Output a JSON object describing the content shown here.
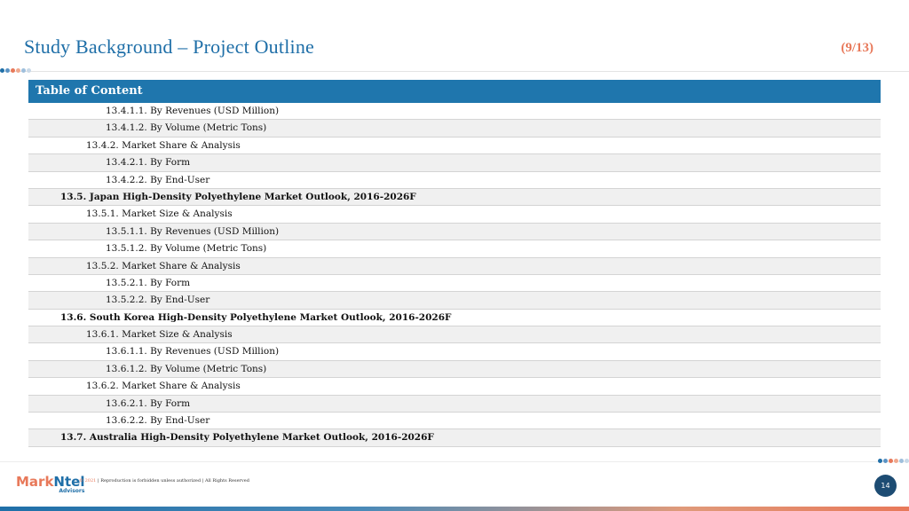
{
  "header": {
    "title": "Study Background – Project Outline",
    "page_counter": "(9/13)"
  },
  "toc": {
    "heading": "Table of Content",
    "rows": [
      {
        "text": "13.4.1.1. By Revenues (USD Million)",
        "level": 3
      },
      {
        "text": "13.4.1.2. By Volume (Metric Tons)",
        "level": 3
      },
      {
        "text": "13.4.2.   Market Share & Analysis",
        "level": 2
      },
      {
        "text": "13.4.2.1. By Form",
        "level": 3
      },
      {
        "text": "13.4.2.2. By End-User",
        "level": 3
      },
      {
        "text": "13.5.  Japan  High-Density Polyethylene Market Outlook, 2016-2026F",
        "level": 1
      },
      {
        "text": "13.5.1.   Market Size & Analysis",
        "level": 2
      },
      {
        "text": "13.5.1.1. By Revenues (USD Million)",
        "level": 3
      },
      {
        "text": "13.5.1.2. By Volume (Metric Tons)",
        "level": 3
      },
      {
        "text": "13.5.2.   Market Share & Analysis",
        "level": 2
      },
      {
        "text": "13.5.2.1. By Form",
        "level": 3
      },
      {
        "text": "13.5.2.2. By End-User",
        "level": 3
      },
      {
        "text": "13.6.  South Korea High-Density Polyethylene Market Outlook, 2016-2026F",
        "level": 1
      },
      {
        "text": "13.6.1.   Market Size & Analysis",
        "level": 2
      },
      {
        "text": "13.6.1.1. By Revenues (USD Million)",
        "level": 3
      },
      {
        "text": "13.6.1.2. By Volume (Metric Tons)",
        "level": 3
      },
      {
        "text": "13.6.2.   Market Share & Analysis",
        "level": 2
      },
      {
        "text": "13.6.2.1. By Form",
        "level": 3
      },
      {
        "text": "13.6.2.2. By End-User",
        "level": 3
      },
      {
        "text": "13.7.  Australia High-Density Polyethylene Market Outlook, 2016-2026F",
        "level": 1
      }
    ]
  },
  "footer": {
    "logo_mark": "Mark",
    "logo_ntel": "Ntel",
    "logo_sub": "Advisors",
    "copyright_year": "© 2021",
    "copyright_text": " | Reproduction is forbidden unless authorized | All Rights Reserved",
    "page_number": "14"
  },
  "colors": {
    "accent_blue": "#1f6fa8",
    "accent_orange": "#e8795a",
    "table_header": "#1f76ad",
    "page_badge": "#1d4c73"
  },
  "decor_dot_colors": [
    "#1f6fa8",
    "#5b93c4",
    "#e8795a",
    "#f0a88e",
    "#9fbfdc",
    "#c9d9e8"
  ]
}
